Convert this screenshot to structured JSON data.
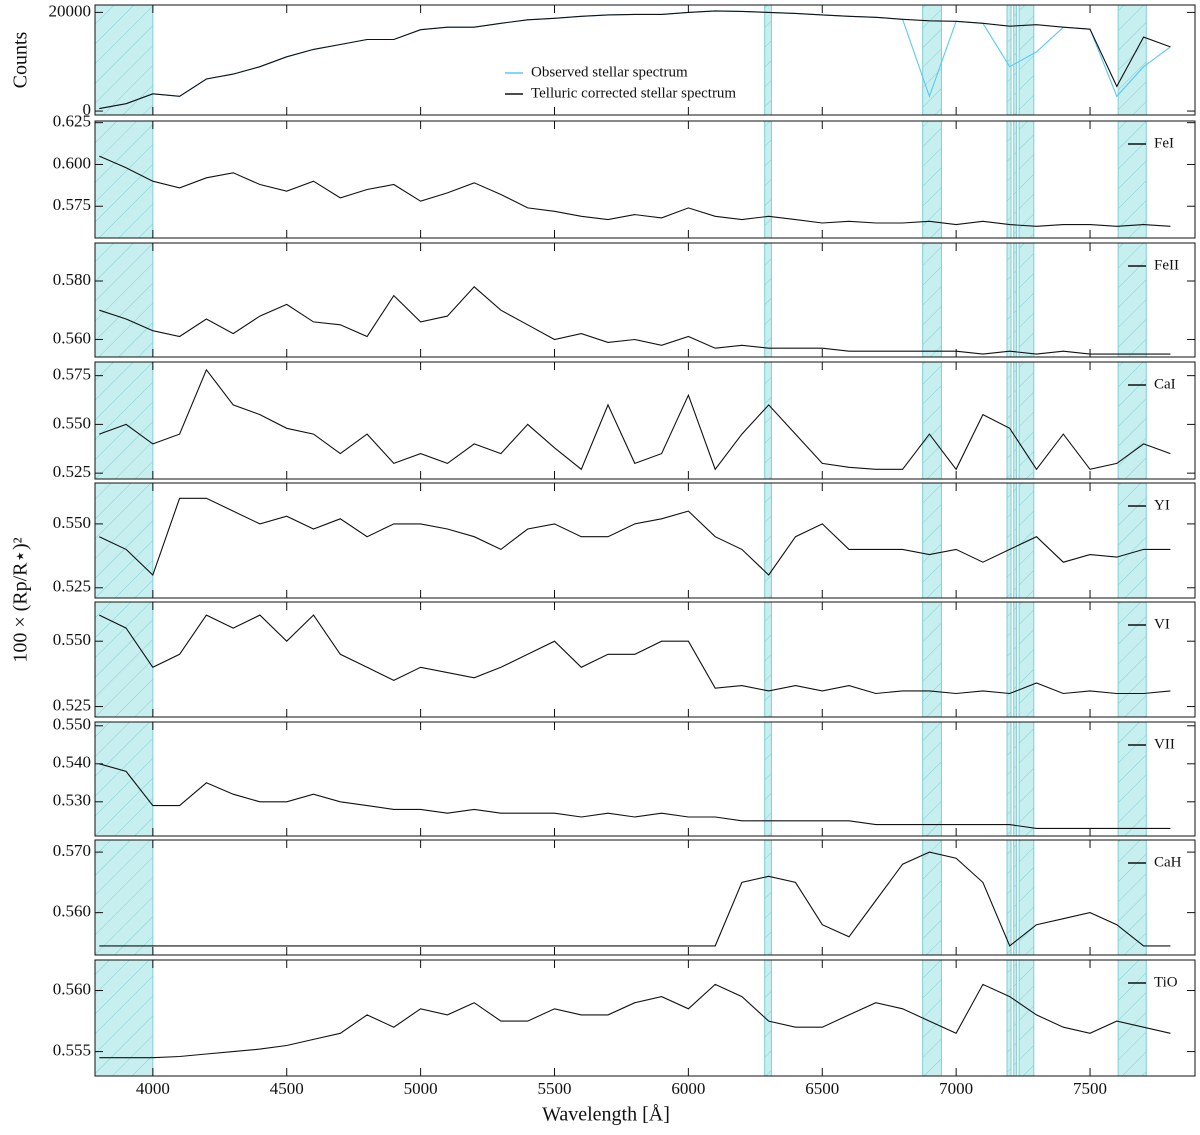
{
  "xlabel": "Wavelength [Å]",
  "ylabel": "100 × (Rp/R⋆)²",
  "masked_regions": [
    [
      3780,
      4000
    ],
    [
      6285,
      6310
    ],
    [
      6875,
      6945
    ],
    [
      7190,
      7205
    ],
    [
      7215,
      7225
    ],
    [
      7235,
      7290
    ],
    [
      7605,
      7710
    ]
  ],
  "chart_data": [
    {
      "type": "line",
      "ylabel": "Counts",
      "legend": "upper center",
      "xlim": [
        3784,
        7892
      ],
      "xticks": [
        4000,
        4500,
        5000,
        5500,
        6000,
        6500,
        7000,
        7500
      ],
      "ylim": [
        -800,
        21500
      ],
      "yticks": [
        0,
        20000
      ],
      "x": [
        3800,
        3900,
        4000,
        4100,
        4200,
        4300,
        4400,
        4500,
        4600,
        4700,
        4800,
        4900,
        5000,
        5100,
        5200,
        5300,
        5400,
        5500,
        5600,
        5700,
        5800,
        5900,
        6000,
        6100,
        6200,
        6300,
        6400,
        6500,
        6600,
        6700,
        6800,
        6900,
        7000,
        7100,
        7200,
        7300,
        7400,
        7500,
        7600,
        7700,
        7800
      ],
      "series": [
        {
          "name": "Observed stellar spectrum",
          "color": "#5bc8f5",
          "values": [
            500,
            1500,
            3500,
            3000,
            6500,
            7500,
            9000,
            11000,
            12500,
            13500,
            14500,
            14500,
            16500,
            17000,
            17000,
            17800,
            18500,
            18800,
            19200,
            19500,
            19600,
            19600,
            20000,
            20300,
            20200,
            20000,
            19800,
            19500,
            19200,
            19000,
            18600,
            3000,
            18200,
            17800,
            9000,
            12000,
            17000,
            16600,
            3000,
            9000,
            13000
          ]
        },
        {
          "name": "Telluric corrected stellar spectrum",
          "color": "#111111",
          "values": [
            500,
            1500,
            3500,
            3000,
            6500,
            7500,
            9000,
            11000,
            12500,
            13500,
            14500,
            14500,
            16500,
            17000,
            17000,
            17800,
            18500,
            18800,
            19200,
            19500,
            19600,
            19600,
            20000,
            20300,
            20200,
            20000,
            19800,
            19500,
            19200,
            19000,
            18600,
            18300,
            18200,
            17800,
            17200,
            17500,
            17000,
            16600,
            5000,
            15000,
            13000
          ]
        }
      ]
    },
    {
      "type": "line",
      "legend": "upper right",
      "xlim": [
        3784,
        7892
      ],
      "xticks": [
        4000,
        4500,
        5000,
        5500,
        6000,
        6500,
        7000,
        7500
      ],
      "ylim": [
        0.556,
        0.626
      ],
      "yticks": [
        0.575,
        {
          "value": 0.6,
          "label": "0.600"
        },
        0.625
      ],
      "x": [
        3800,
        3900,
        4000,
        4100,
        4200,
        4300,
        4400,
        4500,
        4600,
        4700,
        4800,
        4900,
        5000,
        5100,
        5200,
        5300,
        5400,
        5500,
        5600,
        5700,
        5800,
        5900,
        6000,
        6100,
        6200,
        6300,
        6400,
        6500,
        6600,
        6700,
        6800,
        6900,
        7000,
        7100,
        7200,
        7300,
        7400,
        7500,
        7600,
        7700,
        7800
      ],
      "series": [
        {
          "name": "FeI",
          "color": "#111111",
          "values": [
            0.605,
            0.598,
            0.59,
            0.586,
            0.592,
            0.595,
            0.588,
            0.584,
            0.59,
            0.58,
            0.585,
            0.588,
            0.578,
            0.583,
            0.589,
            0.582,
            0.574,
            0.572,
            0.569,
            0.567,
            0.57,
            0.568,
            0.574,
            0.569,
            0.567,
            0.569,
            0.567,
            0.565,
            0.566,
            0.565,
            0.565,
            0.566,
            0.564,
            0.566,
            0.564,
            0.563,
            0.564,
            0.564,
            0.563,
            0.564,
            0.563
          ]
        }
      ]
    },
    {
      "type": "line",
      "legend": "upper right",
      "xlim": [
        3784,
        7892
      ],
      "xticks": [
        4000,
        4500,
        5000,
        5500,
        6000,
        6500,
        7000,
        7500
      ],
      "ylim": [
        0.554,
        0.593
      ],
      "yticks": [
        {
          "value": 0.56,
          "label": "0.560"
        },
        {
          "value": 0.58,
          "label": "0.580"
        }
      ],
      "x": [
        3800,
        3900,
        4000,
        4100,
        4200,
        4300,
        4400,
        4500,
        4600,
        4700,
        4800,
        4900,
        5000,
        5100,
        5200,
        5300,
        5400,
        5500,
        5600,
        5700,
        5800,
        5900,
        6000,
        6100,
        6200,
        6300,
        6400,
        6500,
        6600,
        6700,
        6800,
        6900,
        7000,
        7100,
        7200,
        7300,
        7400,
        7500,
        7600,
        7700,
        7800
      ],
      "series": [
        {
          "name": "FeII",
          "color": "#111111",
          "values": [
            0.57,
            0.567,
            0.563,
            0.561,
            0.567,
            0.562,
            0.568,
            0.572,
            0.566,
            0.565,
            0.561,
            0.575,
            0.566,
            0.568,
            0.578,
            0.57,
            0.565,
            0.56,
            0.562,
            0.559,
            0.56,
            0.558,
            0.561,
            0.557,
            0.558,
            0.557,
            0.557,
            0.557,
            0.556,
            0.556,
            0.556,
            0.556,
            0.556,
            0.555,
            0.556,
            0.555,
            0.556,
            0.555,
            0.555,
            0.555,
            0.555
          ]
        }
      ]
    },
    {
      "type": "line",
      "legend": "upper right",
      "xlim": [
        3784,
        7892
      ],
      "xticks": [
        4000,
        4500,
        5000,
        5500,
        6000,
        6500,
        7000,
        7500
      ],
      "ylim": [
        0.522,
        0.582
      ],
      "yticks": [
        0.525,
        {
          "value": 0.55,
          "label": "0.550"
        },
        0.575
      ],
      "x": [
        3800,
        3900,
        4000,
        4100,
        4200,
        4300,
        4400,
        4500,
        4600,
        4700,
        4800,
        4900,
        5000,
        5100,
        5200,
        5300,
        5400,
        5500,
        5600,
        5700,
        5800,
        5900,
        6000,
        6100,
        6200,
        6300,
        6400,
        6500,
        6600,
        6700,
        6800,
        6900,
        7000,
        7100,
        7200,
        7300,
        7400,
        7500,
        7600,
        7700,
        7800
      ],
      "series": [
        {
          "name": "CaI",
          "color": "#111111",
          "values": [
            0.545,
            0.55,
            0.54,
            0.545,
            0.578,
            0.56,
            0.555,
            0.548,
            0.545,
            0.535,
            0.545,
            0.53,
            0.535,
            0.53,
            0.54,
            0.535,
            0.55,
            0.538,
            0.527,
            0.56,
            0.53,
            0.535,
            0.565,
            0.527,
            0.545,
            0.56,
            0.545,
            0.53,
            0.528,
            0.527,
            0.527,
            0.545,
            0.527,
            0.555,
            0.548,
            0.527,
            0.545,
            0.527,
            0.53,
            0.54,
            0.535
          ]
        }
      ]
    },
    {
      "type": "line",
      "legend": "upper right",
      "xlim": [
        3784,
        7892
      ],
      "xticks": [
        4000,
        4500,
        5000,
        5500,
        6000,
        6500,
        7000,
        7500
      ],
      "ylim": [
        0.521,
        0.566
      ],
      "yticks": [
        0.525,
        {
          "value": 0.55,
          "label": "0.550"
        }
      ],
      "x": [
        3800,
        3900,
        4000,
        4100,
        4200,
        4300,
        4400,
        4500,
        4600,
        4700,
        4800,
        4900,
        5000,
        5100,
        5200,
        5300,
        5400,
        5500,
        5600,
        5700,
        5800,
        5900,
        6000,
        6100,
        6200,
        6300,
        6400,
        6500,
        6600,
        6700,
        6800,
        6900,
        7000,
        7100,
        7200,
        7300,
        7400,
        7500,
        7600,
        7700,
        7800
      ],
      "series": [
        {
          "name": "YI",
          "color": "#111111",
          "values": [
            0.545,
            0.54,
            0.53,
            0.56,
            0.56,
            0.555,
            0.55,
            0.553,
            0.548,
            0.552,
            0.545,
            0.55,
            0.55,
            0.548,
            0.545,
            0.54,
            0.548,
            0.55,
            0.545,
            0.545,
            0.55,
            0.552,
            0.555,
            0.545,
            0.54,
            0.53,
            0.545,
            0.55,
            0.54,
            0.54,
            0.54,
            0.538,
            0.54,
            0.535,
            0.54,
            0.545,
            0.535,
            0.538,
            0.537,
            0.54,
            0.54
          ]
        }
      ]
    },
    {
      "type": "line",
      "legend": "upper right",
      "xlim": [
        3784,
        7892
      ],
      "xticks": [
        4000,
        4500,
        5000,
        5500,
        6000,
        6500,
        7000,
        7500
      ],
      "ylim": [
        0.521,
        0.565
      ],
      "yticks": [
        0.525,
        {
          "value": 0.55,
          "label": "0.550"
        }
      ],
      "x": [
        3800,
        3900,
        4000,
        4100,
        4200,
        4300,
        4400,
        4500,
        4600,
        4700,
        4800,
        4900,
        5000,
        5100,
        5200,
        5300,
        5400,
        5500,
        5600,
        5700,
        5800,
        5900,
        6000,
        6100,
        6200,
        6300,
        6400,
        6500,
        6600,
        6700,
        6800,
        6900,
        7000,
        7100,
        7200,
        7300,
        7400,
        7500,
        7600,
        7700,
        7800
      ],
      "series": [
        {
          "name": "VI",
          "color": "#111111",
          "values": [
            0.56,
            0.555,
            0.54,
            0.545,
            0.56,
            0.555,
            0.56,
            0.55,
            0.56,
            0.545,
            0.54,
            0.535,
            0.54,
            0.538,
            0.536,
            0.54,
            0.545,
            0.55,
            0.54,
            0.545,
            0.545,
            0.55,
            0.55,
            0.532,
            0.533,
            0.531,
            0.533,
            0.531,
            0.533,
            0.53,
            0.531,
            0.531,
            0.53,
            0.531,
            0.53,
            0.534,
            0.53,
            0.531,
            0.53,
            0.53,
            0.531
          ]
        }
      ]
    },
    {
      "type": "line",
      "legend": "upper right",
      "xlim": [
        3784,
        7892
      ],
      "xticks": [
        4000,
        4500,
        5000,
        5500,
        6000,
        6500,
        7000,
        7500
      ],
      "ylim": [
        0.521,
        0.551
      ],
      "yticks": [
        {
          "value": 0.53,
          "label": "0.530"
        },
        {
          "value": 0.54,
          "label": "0.540"
        },
        {
          "value": 0.55,
          "label": "0.550"
        }
      ],
      "x": [
        3800,
        3900,
        4000,
        4100,
        4200,
        4300,
        4400,
        4500,
        4600,
        4700,
        4800,
        4900,
        5000,
        5100,
        5200,
        5300,
        5400,
        5500,
        5600,
        5700,
        5800,
        5900,
        6000,
        6100,
        6200,
        6300,
        6400,
        6500,
        6600,
        6700,
        6800,
        6900,
        7000,
        7100,
        7200,
        7300,
        7400,
        7500,
        7600,
        7700,
        7800
      ],
      "series": [
        {
          "name": "VII",
          "color": "#111111",
          "values": [
            0.54,
            0.538,
            0.529,
            0.529,
            0.535,
            0.532,
            0.53,
            0.53,
            0.532,
            0.53,
            0.529,
            0.528,
            0.528,
            0.527,
            0.528,
            0.527,
            0.527,
            0.527,
            0.526,
            0.527,
            0.526,
            0.527,
            0.526,
            0.526,
            0.525,
            0.525,
            0.525,
            0.525,
            0.525,
            0.524,
            0.524,
            0.524,
            0.524,
            0.524,
            0.524,
            0.523,
            0.523,
            0.523,
            0.523,
            0.523,
            0.523
          ]
        }
      ]
    },
    {
      "type": "line",
      "legend": "upper right",
      "xlim": [
        3784,
        7892
      ],
      "xticks": [
        4000,
        4500,
        5000,
        5500,
        6000,
        6500,
        7000,
        7500
      ],
      "ylim": [
        0.553,
        0.572
      ],
      "yticks": [
        {
          "value": 0.56,
          "label": "0.560"
        },
        {
          "value": 0.57,
          "label": "0.570"
        }
      ],
      "x": [
        3800,
        3900,
        4000,
        4100,
        4200,
        4300,
        4400,
        4500,
        4600,
        4700,
        4800,
        4900,
        5000,
        5100,
        5200,
        5300,
        5400,
        5500,
        5600,
        5700,
        5800,
        5900,
        6000,
        6100,
        6200,
        6300,
        6400,
        6500,
        6600,
        6700,
        6800,
        6900,
        7000,
        7100,
        7200,
        7300,
        7400,
        7500,
        7600,
        7700,
        7800
      ],
      "series": [
        {
          "name": "CaH",
          "color": "#111111",
          "values": [
            0.5545,
            0.5545,
            0.5545,
            0.5545,
            0.5545,
            0.5545,
            0.5545,
            0.5545,
            0.5545,
            0.5545,
            0.5545,
            0.5545,
            0.5545,
            0.5545,
            0.5545,
            0.5545,
            0.5545,
            0.5545,
            0.5545,
            0.5545,
            0.5545,
            0.5545,
            0.5545,
            0.5545,
            0.565,
            0.566,
            0.565,
            0.558,
            0.556,
            0.562,
            0.568,
            0.57,
            0.569,
            0.565,
            0.5545,
            0.558,
            0.559,
            0.56,
            0.558,
            0.5545,
            0.5545
          ]
        }
      ]
    },
    {
      "type": "line",
      "legend": "upper right",
      "xlim": [
        3784,
        7892
      ],
      "xticks": [
        4000,
        4500,
        5000,
        5500,
        6000,
        6500,
        7000,
        7500
      ],
      "ylim": [
        0.553,
        0.5625
      ],
      "yticks": [
        0.555,
        {
          "value": 0.56,
          "label": "0.560"
        }
      ],
      "x": [
        3800,
        3900,
        4000,
        4100,
        4200,
        4300,
        4400,
        4500,
        4600,
        4700,
        4800,
        4900,
        5000,
        5100,
        5200,
        5300,
        5400,
        5500,
        5600,
        5700,
        5800,
        5900,
        6000,
        6100,
        6200,
        6300,
        6400,
        6500,
        6600,
        6700,
        6800,
        6900,
        7000,
        7100,
        7200,
        7300,
        7400,
        7500,
        7600,
        7700,
        7800
      ],
      "series": [
        {
          "name": "TiO",
          "color": "#111111",
          "values": [
            0.5545,
            0.5545,
            0.5545,
            0.5546,
            0.5548,
            0.555,
            0.5552,
            0.5555,
            0.556,
            0.5565,
            0.558,
            0.557,
            0.5585,
            0.558,
            0.559,
            0.5575,
            0.5575,
            0.5585,
            0.558,
            0.558,
            0.559,
            0.5595,
            0.5585,
            0.5605,
            0.5595,
            0.5575,
            0.557,
            0.557,
            0.558,
            0.559,
            0.5585,
            0.5575,
            0.5565,
            0.5605,
            0.5595,
            0.558,
            0.557,
            0.5565,
            0.5575,
            0.557,
            0.5565
          ]
        }
      ]
    }
  ]
}
